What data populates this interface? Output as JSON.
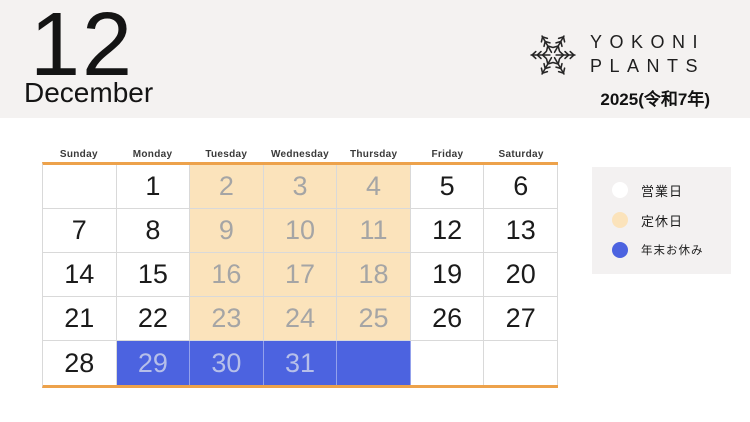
{
  "header": {
    "month_number": "12",
    "month_name": "December",
    "brand_line1": "YOKONI",
    "brand_line2": "PLANTS",
    "year_label": "2025(令和7年)"
  },
  "calendar": {
    "weekdays": [
      "Sunday",
      "Monday",
      "Tuesday",
      "Wednesday",
      "Thursday",
      "Friday",
      "Saturday"
    ],
    "weeks": [
      [
        {
          "day": "",
          "status": "blank"
        },
        {
          "day": "1",
          "status": "open"
        },
        {
          "day": "2",
          "status": "closed"
        },
        {
          "day": "3",
          "status": "closed"
        },
        {
          "day": "4",
          "status": "closed"
        },
        {
          "day": "5",
          "status": "open"
        },
        {
          "day": "6",
          "status": "open"
        }
      ],
      [
        {
          "day": "7",
          "status": "open"
        },
        {
          "day": "8",
          "status": "open"
        },
        {
          "day": "9",
          "status": "closed"
        },
        {
          "day": "10",
          "status": "closed"
        },
        {
          "day": "11",
          "status": "closed"
        },
        {
          "day": "12",
          "status": "open"
        },
        {
          "day": "13",
          "status": "open"
        }
      ],
      [
        {
          "day": "14",
          "status": "open"
        },
        {
          "day": "15",
          "status": "open"
        },
        {
          "day": "16",
          "status": "closed"
        },
        {
          "day": "17",
          "status": "closed"
        },
        {
          "day": "18",
          "status": "closed"
        },
        {
          "day": "19",
          "status": "open"
        },
        {
          "day": "20",
          "status": "open"
        }
      ],
      [
        {
          "day": "21",
          "status": "open"
        },
        {
          "day": "22",
          "status": "open"
        },
        {
          "day": "23",
          "status": "closed"
        },
        {
          "day": "24",
          "status": "closed"
        },
        {
          "day": "25",
          "status": "closed"
        },
        {
          "day": "26",
          "status": "open"
        },
        {
          "day": "27",
          "status": "open"
        }
      ],
      [
        {
          "day": "28",
          "status": "open"
        },
        {
          "day": "29",
          "status": "yearend"
        },
        {
          "day": "30",
          "status": "yearend"
        },
        {
          "day": "31",
          "status": "yearend"
        },
        {
          "day": "",
          "status": "yearend"
        },
        {
          "day": "",
          "status": "blank"
        },
        {
          "day": "",
          "status": "blank"
        }
      ]
    ]
  },
  "legend": {
    "items": [
      {
        "label": "営業日",
        "color": "#ffffff"
      },
      {
        "label": "定休日",
        "color": "#fbe3bb"
      },
      {
        "label": "年末お休み",
        "color": "#4c63e0"
      }
    ]
  },
  "colors": {
    "header_band": "#f4f2f1",
    "accent_orange": "#eda24b",
    "closed_bg": "#fbe3bb",
    "closed_text": "#a5a5a5",
    "yearend_bg": "#4c63e0",
    "yearend_text": "#b6bfe9",
    "grid_border": "#d9d9d9",
    "legend_bg": "#f3f1f1",
    "text_dark": "#1b1b1b"
  }
}
